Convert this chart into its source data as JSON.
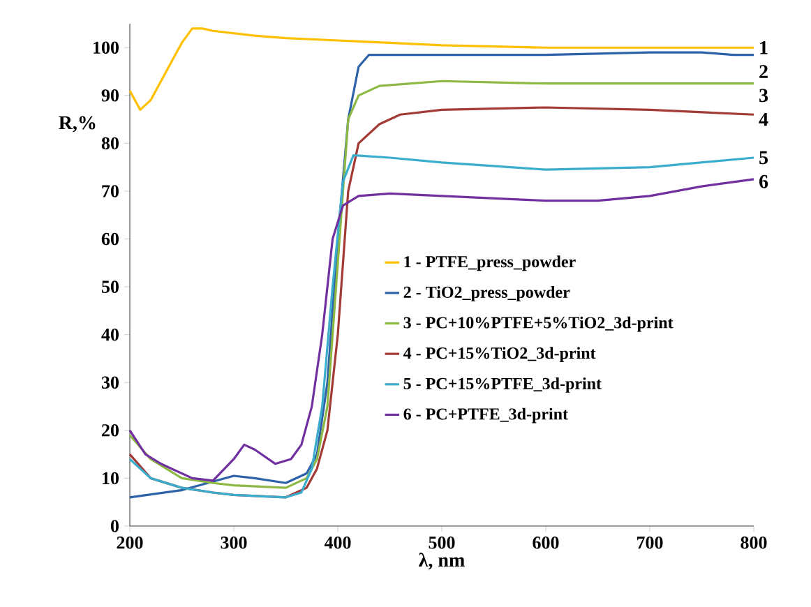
{
  "chart_data": {
    "type": "line",
    "xlabel": "λ, nm",
    "ylabel": "R,%",
    "xlim": [
      200,
      800
    ],
    "ylim": [
      0,
      105
    ],
    "xticks": [
      200,
      300,
      400,
      500,
      600,
      700,
      800
    ],
    "yticks": [
      0,
      10,
      20,
      30,
      40,
      50,
      60,
      70,
      80,
      90,
      100
    ],
    "grid": false,
    "legend": "right",
    "marker": "none",
    "line_style": "solid",
    "series": [
      {
        "name": "1 - PTFE_press_powder",
        "color": "#ffc000",
        "x": [
          200,
          205,
          210,
          220,
          230,
          240,
          250,
          260,
          270,
          280,
          300,
          320,
          350,
          400,
          450,
          500,
          600,
          700,
          800
        ],
        "values": [
          91,
          89,
          87,
          89,
          93,
          97,
          101,
          104,
          104,
          103.5,
          103,
          102.5,
          102,
          101.5,
          101,
          100.5,
          100,
          100,
          100
        ]
      },
      {
        "name": "2 - TiO2_press_powder",
        "color": "#2e62a8",
        "x": [
          200,
          250,
          300,
          320,
          350,
          370,
          380,
          390,
          400,
          410,
          420,
          430,
          450,
          500,
          600,
          700,
          750,
          780,
          800
        ],
        "values": [
          6,
          7.5,
          10.5,
          10,
          9,
          11,
          15,
          30,
          60,
          85,
          96,
          98.5,
          98.5,
          98.5,
          98.5,
          99,
          99,
          98.5,
          98.5
        ]
      },
      {
        "name": "3 - PC+10%PTFE+5%TiO2_3d-print",
        "color": "#8db843",
        "x": [
          200,
          220,
          250,
          280,
          300,
          350,
          370,
          380,
          390,
          400,
          410,
          420,
          440,
          500,
          600,
          700,
          800
        ],
        "values": [
          19,
          14,
          10,
          9,
          8.5,
          8,
          10,
          14,
          25,
          55,
          85,
          90,
          92,
          93,
          92.5,
          92.5,
          92.5
        ]
      },
      {
        "name": "4 - PC+15%TiO2_3d-print",
        "color": "#a33a35",
        "x": [
          200,
          220,
          250,
          280,
          300,
          350,
          370,
          380,
          390,
          400,
          410,
          420,
          440,
          460,
          500,
          600,
          700,
          800
        ],
        "values": [
          15,
          10,
          8,
          7,
          6.5,
          6,
          8,
          12,
          20,
          40,
          70,
          80,
          84,
          86,
          87,
          87.5,
          87,
          86
        ]
      },
      {
        "name": "5 - PC+15%PTFE_3d-print",
        "color": "#3aadcc",
        "x": [
          200,
          220,
          250,
          280,
          300,
          350,
          365,
          375,
          385,
          395,
          405,
          415,
          450,
          500,
          600,
          700,
          750,
          800
        ],
        "values": [
          14,
          10,
          8,
          7,
          6.5,
          6,
          7,
          12,
          25,
          50,
          72,
          77.5,
          77,
          76,
          74.5,
          75,
          76,
          77
        ]
      },
      {
        "name": "6 - PC+PTFE_3d-print",
        "color": "#7030a0",
        "x": [
          200,
          215,
          230,
          260,
          280,
          300,
          310,
          320,
          340,
          355,
          365,
          375,
          385,
          395,
          405,
          420,
          450,
          500,
          600,
          650,
          700,
          750,
          800
        ],
        "values": [
          20,
          15,
          13,
          10,
          9.5,
          14,
          17,
          16,
          13,
          14,
          17,
          25,
          40,
          60,
          67,
          69,
          69.5,
          69,
          68,
          68,
          69,
          71,
          72.5
        ]
      }
    ],
    "annotations": [
      "1",
      "2",
      "3",
      "4",
      "5",
      "6"
    ]
  }
}
